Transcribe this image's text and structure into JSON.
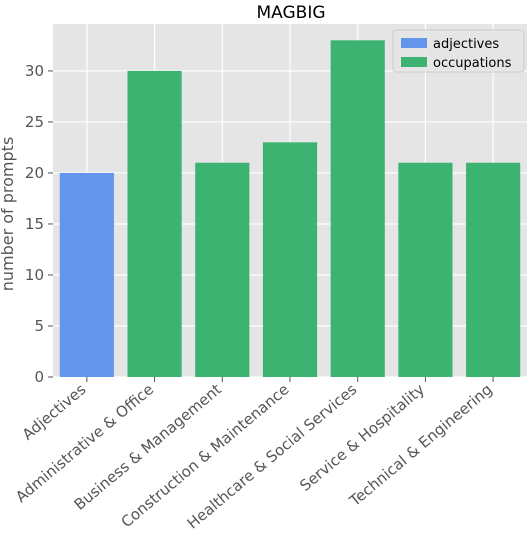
{
  "chart_data": {
    "type": "bar",
    "title": "MAGBIG",
    "xlabel": "",
    "ylabel": "number of prompts",
    "ylim": [
      0,
      34.6
    ],
    "yticks": [
      0,
      5,
      10,
      15,
      20,
      25,
      30
    ],
    "grid": true,
    "legend_position": "top-right",
    "background_color": "#e5e5e5",
    "grid_color": "#ffffff",
    "categories": [
      "Adjectives",
      "Administrative & Office",
      "Business & Management",
      "Construction & Maintenance",
      "Healthcare & Social Services",
      "Service & Hospitality",
      "Technical & Engineering"
    ],
    "values": [
      20,
      30,
      21,
      23,
      33,
      21,
      21
    ],
    "bar_series": [
      "adjectives",
      "occupations",
      "occupations",
      "occupations",
      "occupations",
      "occupations",
      "occupations"
    ],
    "series": [
      {
        "name": "adjectives",
        "color": "#6495ed"
      },
      {
        "name": "occupations",
        "color": "#3cb371"
      }
    ]
  }
}
